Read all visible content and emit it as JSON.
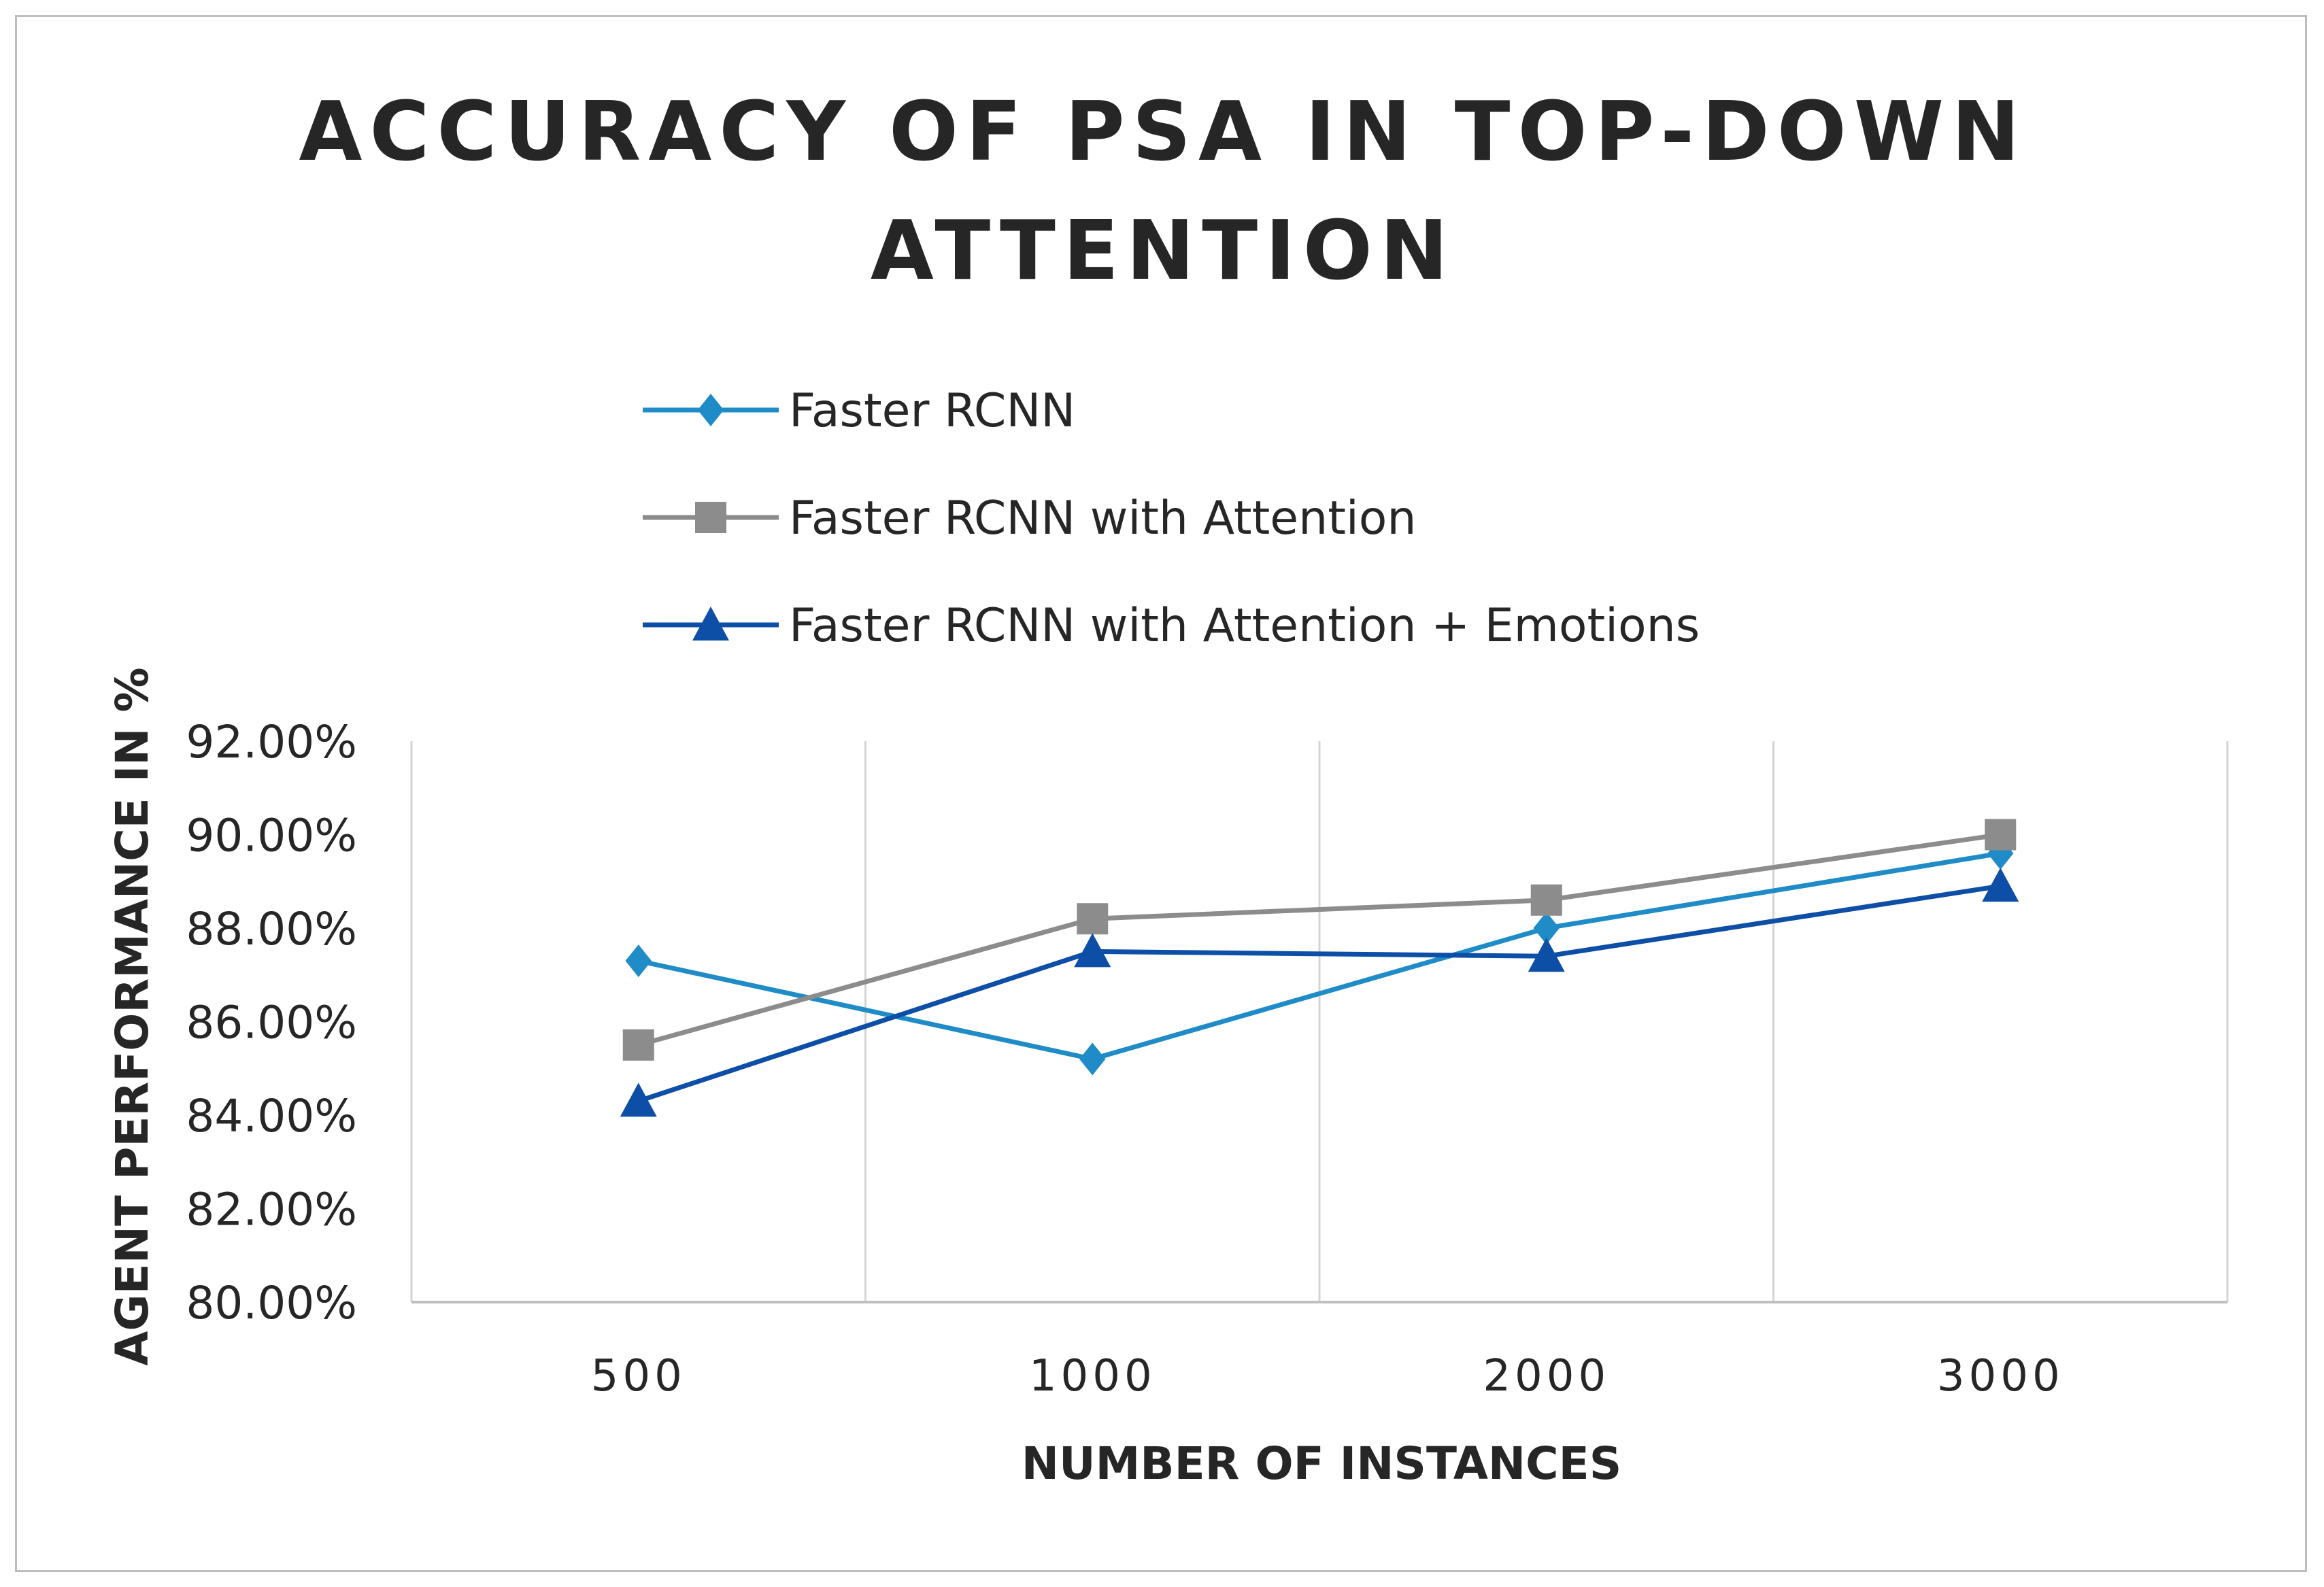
{
  "chart_data": {
    "type": "line",
    "title_lines": [
      "ACCURACY OF PSA IN TOP-DOWN",
      "ATTENTION"
    ],
    "xlabel": "NUMBER OF INSTANCES",
    "ylabel": "AGENT PERFORMANCE IN %",
    "categories": [
      "500",
      "1000",
      "2000",
      "3000"
    ],
    "y_tick_labels": [
      "80.00%",
      "82.00%",
      "84.00%",
      "86.00%",
      "88.00%",
      "90.00%",
      "92.00%"
    ],
    "ylim": [
      80,
      92
    ],
    "y_step": 2,
    "grid": "vertical",
    "legend_position": "top",
    "series": [
      {
        "name": "Faster RCNN",
        "marker": "diamond",
        "color": "#1f8bc7",
        "values": [
          87.3,
          85.2,
          88.0,
          89.6
        ]
      },
      {
        "name": "Faster RCNN with Attention",
        "marker": "square",
        "color": "#8c8c8c",
        "values": [
          85.5,
          88.2,
          88.6,
          90.0
        ]
      },
      {
        "name": "Faster RCNN with Attention + Emotions",
        "marker": "triangle",
        "color": "#0d4ea6",
        "values": [
          84.3,
          87.5,
          87.4,
          88.9
        ]
      }
    ]
  }
}
